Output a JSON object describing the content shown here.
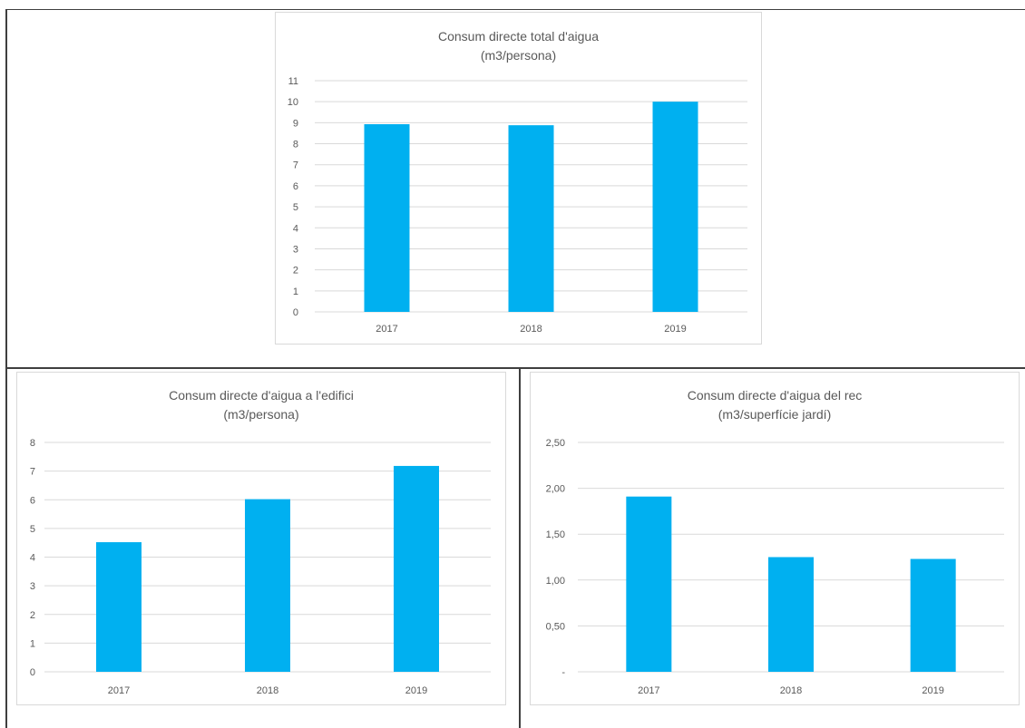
{
  "chart_data": [
    {
      "type": "bar",
      "title": "Consum directe total d'aigua",
      "subtitle": "(m3/persona)",
      "categories": [
        "2017",
        "2018",
        "2019"
      ],
      "values": [
        8.93,
        8.88,
        10.0
      ],
      "ylim": [
        0,
        11
      ],
      "yticks": [
        "0",
        "1",
        "2",
        "3",
        "4",
        "5",
        "6",
        "7",
        "8",
        "9",
        "10",
        "11"
      ],
      "grid": true,
      "bar_color": "#00b0f0"
    },
    {
      "type": "bar",
      "title": "Consum directe d'aigua a l'edifici",
      "subtitle": "(m3/persona)",
      "categories": [
        "2017",
        "2018",
        "2019"
      ],
      "values": [
        4.52,
        6.02,
        7.18
      ],
      "ylim": [
        0,
        8
      ],
      "yticks": [
        "0",
        "1",
        "2",
        "3",
        "4",
        "5",
        "6",
        "7",
        "8"
      ],
      "grid": true,
      "bar_color": "#00b0f0"
    },
    {
      "type": "bar",
      "title": "Consum directe d'aigua del rec",
      "subtitle": "(m3/superfície jardí)",
      "categories": [
        "2017",
        "2018",
        "2019"
      ],
      "values": [
        1.91,
        1.25,
        1.23
      ],
      "ylim": [
        0,
        2.5
      ],
      "yticks": [
        "-",
        "0,50",
        "1,00",
        "1,50",
        "2,00",
        "2,50"
      ],
      "grid": true,
      "bar_color": "#00b0f0"
    }
  ]
}
